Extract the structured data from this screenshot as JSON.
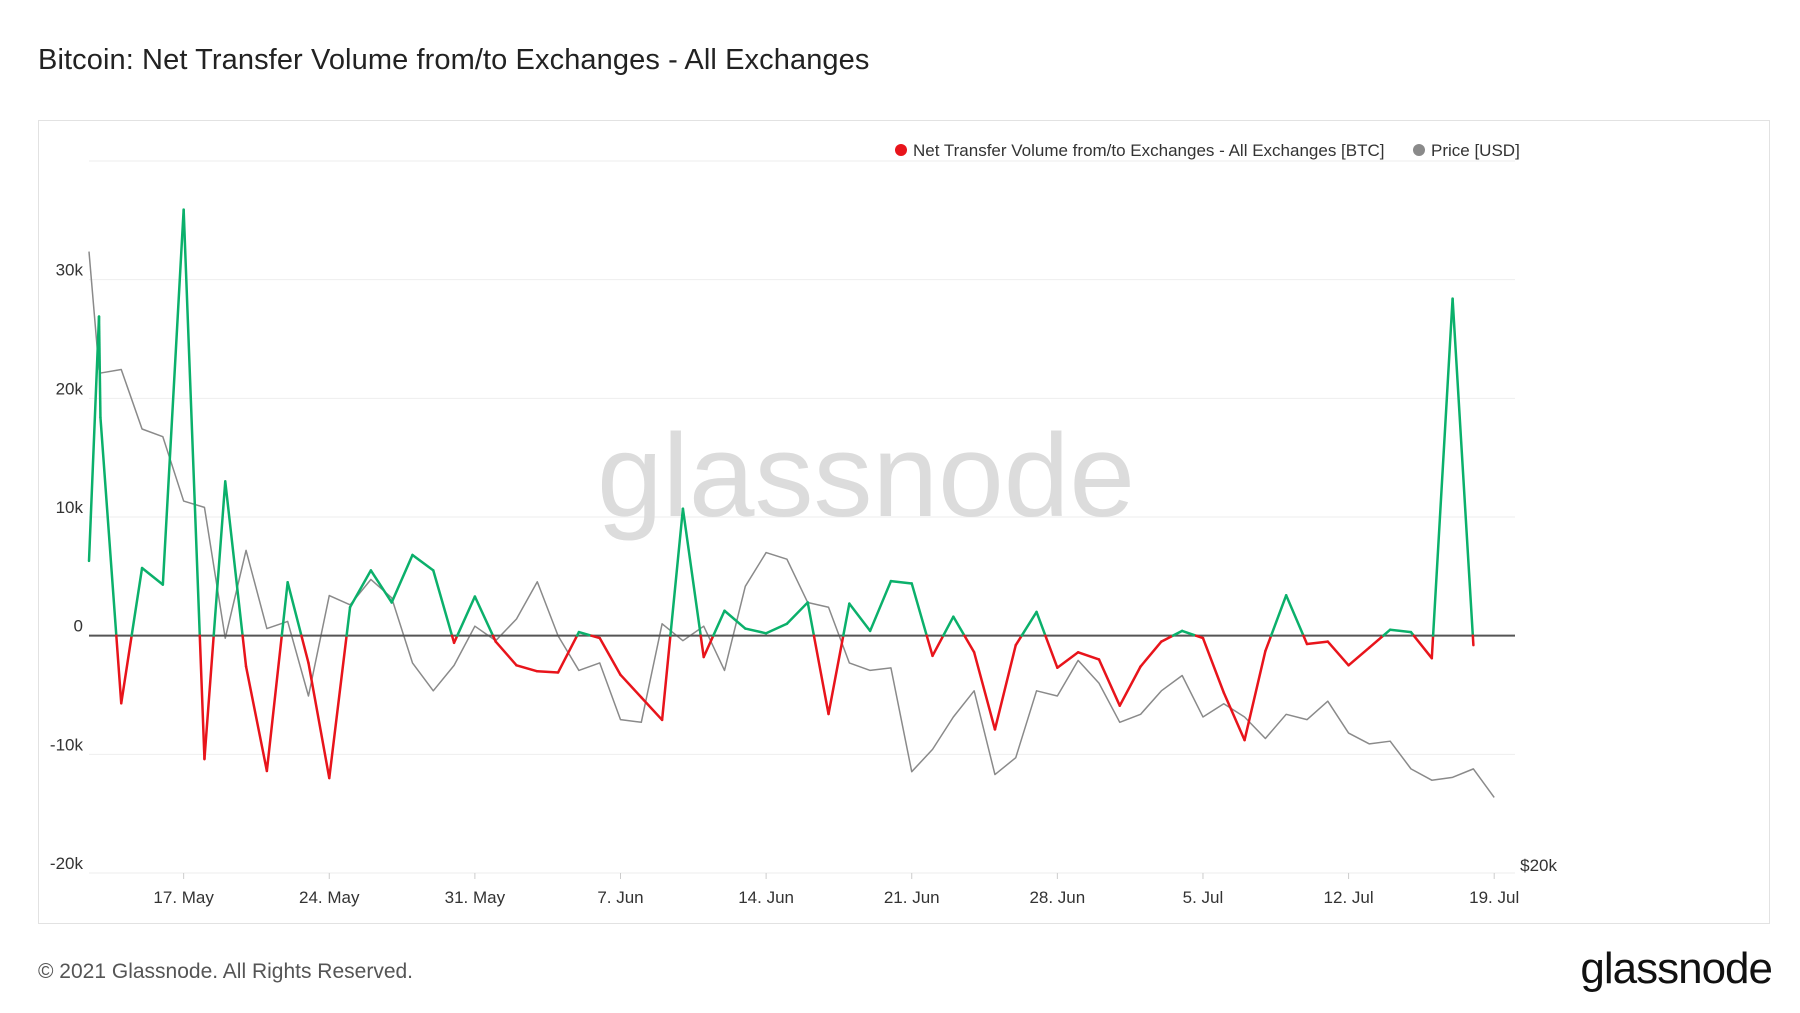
{
  "header": {
    "title": "Bitcoin: Net Transfer Volume from/to Exchanges - All Exchanges"
  },
  "footer": {
    "copyright": "© 2021 Glassnode. All Rights Reserved.",
    "logo_text": "glassnode"
  },
  "watermark": "glassnode",
  "colors": {
    "positive": "#0bb06b",
    "negative": "#e8141b",
    "price": "#8a8a8a",
    "zero_line": "#555555",
    "grid": "#eeeeee",
    "watermark": "#dcdcdc"
  },
  "chart_data": {
    "type": "line",
    "title": "Bitcoin: Net Transfer Volume from/to Exchanges - All Exchanges",
    "legend": {
      "placement": "top-right",
      "items": [
        {
          "label": "Net Transfer Volume from/to Exchanges - All Exchanges [BTC]",
          "color": "#e8141b"
        },
        {
          "label": "Price [USD]",
          "color": "#8a8a8a"
        }
      ]
    },
    "x_range": [
      "2021-05-12",
      "2021-07-20"
    ],
    "x_ticks": [
      {
        "date": "2021-05-17",
        "label": "17. May"
      },
      {
        "date": "2021-05-24",
        "label": "24. May"
      },
      {
        "date": "2021-05-31",
        "label": "31. May"
      },
      {
        "date": "2021-06-07",
        "label": "7. Jun"
      },
      {
        "date": "2021-06-14",
        "label": "14. Jun"
      },
      {
        "date": "2021-06-21",
        "label": "21. Jun"
      },
      {
        "date": "2021-06-28",
        "label": "28. Jun"
      },
      {
        "date": "2021-07-05",
        "label": "5. Jul"
      },
      {
        "date": "2021-07-12",
        "label": "12. Jul"
      },
      {
        "date": "2021-07-19",
        "label": "19. Jul"
      }
    ],
    "y_left": {
      "unit": "BTC",
      "range": [
        -20000,
        40000
      ],
      "ticks": [
        {
          "value": -20000,
          "label": "-20k"
        },
        {
          "value": -10000,
          "label": "-10k"
        },
        {
          "value": 0,
          "label": "0"
        },
        {
          "value": 10000,
          "label": "10k"
        },
        {
          "value": 20000,
          "label": "20k"
        },
        {
          "value": 30000,
          "label": "30k"
        }
      ]
    },
    "y_right": {
      "unit": "USD",
      "scale": "log",
      "range": [
        30000,
        60000
      ],
      "ticks": [
        {
          "value": 20000,
          "label": "$20k"
        }
      ]
    },
    "grid": true,
    "series": [
      {
        "name": "Net Transfer Volume from/to Exchanges - All Exchanges [BTC]",
        "axis": "left",
        "points": [
          [
            "2021-05-12",
            6300
          ],
          [
            "2021-05-12",
            26900
          ],
          [
            "2021-05-13",
            18400
          ],
          [
            "2021-05-14",
            -5700
          ],
          [
            "2021-05-15",
            5700
          ],
          [
            "2021-05-16",
            4300
          ],
          [
            "2021-05-17",
            35900
          ],
          [
            "2021-05-18",
            -10400
          ],
          [
            "2021-05-19",
            13000
          ],
          [
            "2021-05-20",
            -2600
          ],
          [
            "2021-05-21",
            -11400
          ],
          [
            "2021-05-22",
            4500
          ],
          [
            "2021-05-23",
            -2300
          ],
          [
            "2021-05-24",
            -12000
          ],
          [
            "2021-05-25",
            2400
          ],
          [
            "2021-05-26",
            5500
          ],
          [
            "2021-05-27",
            2800
          ],
          [
            "2021-05-28",
            6800
          ],
          [
            "2021-05-29",
            5500
          ],
          [
            "2021-05-30",
            -600
          ],
          [
            "2021-05-31",
            3300
          ],
          [
            "2021-06-01",
            -500
          ],
          [
            "2021-06-02",
            -2500
          ],
          [
            "2021-06-03",
            -3000
          ],
          [
            "2021-06-04",
            -3100
          ],
          [
            "2021-06-05",
            300
          ],
          [
            "2021-06-06",
            -200
          ],
          [
            "2021-06-07",
            -3300
          ],
          [
            "2021-06-08",
            -5200
          ],
          [
            "2021-06-09",
            -7100
          ],
          [
            "2021-06-10",
            10700
          ],
          [
            "2021-06-11",
            -1800
          ],
          [
            "2021-06-12",
            2100
          ],
          [
            "2021-06-13",
            600
          ],
          [
            "2021-06-14",
            200
          ],
          [
            "2021-06-15",
            1000
          ],
          [
            "2021-06-16",
            2800
          ],
          [
            "2021-06-17",
            -6600
          ],
          [
            "2021-06-18",
            2700
          ],
          [
            "2021-06-19",
            400
          ],
          [
            "2021-06-20",
            4600
          ],
          [
            "2021-06-21",
            4400
          ],
          [
            "2021-06-22",
            -1700
          ],
          [
            "2021-06-23",
            1600
          ],
          [
            "2021-06-24",
            -1400
          ],
          [
            "2021-06-25",
            -7900
          ],
          [
            "2021-06-26",
            -800
          ],
          [
            "2021-06-27",
            2000
          ],
          [
            "2021-06-28",
            -2700
          ],
          [
            "2021-06-29",
            -1400
          ],
          [
            "2021-06-30",
            -2000
          ],
          [
            "2021-07-01",
            -5900
          ],
          [
            "2021-07-02",
            -2600
          ],
          [
            "2021-07-03",
            -500
          ],
          [
            "2021-07-04",
            400
          ],
          [
            "2021-07-05",
            -200
          ],
          [
            "2021-07-06",
            -4800
          ],
          [
            "2021-07-07",
            -8800
          ],
          [
            "2021-07-08",
            -1300
          ],
          [
            "2021-07-09",
            3400
          ],
          [
            "2021-07-10",
            -700
          ],
          [
            "2021-07-11",
            -500
          ],
          [
            "2021-07-12",
            -2500
          ],
          [
            "2021-07-13",
            -1000
          ],
          [
            "2021-07-14",
            500
          ],
          [
            "2021-07-15",
            300
          ],
          [
            "2021-07-16",
            -1900
          ],
          [
            "2021-07-17",
            28400
          ],
          [
            "2021-07-18",
            -800
          ]
        ]
      },
      {
        "name": "Price [USD]",
        "axis": "right",
        "points": [
          [
            "2021-05-12",
            56700
          ],
          [
            "2021-05-12",
            49700
          ],
          [
            "2021-05-13",
            49500
          ],
          [
            "2021-05-14",
            49700
          ],
          [
            "2021-05-15",
            46500
          ],
          [
            "2021-05-16",
            46100
          ],
          [
            "2021-05-17",
            42900
          ],
          [
            "2021-05-18",
            42600
          ],
          [
            "2021-05-19",
            36800
          ],
          [
            "2021-05-20",
            40600
          ],
          [
            "2021-05-21",
            37200
          ],
          [
            "2021-05-22",
            37500
          ],
          [
            "2021-05-23",
            34500
          ],
          [
            "2021-05-24",
            38600
          ],
          [
            "2021-05-25",
            38200
          ],
          [
            "2021-05-26",
            39300
          ],
          [
            "2021-05-27",
            38500
          ],
          [
            "2021-05-28",
            35800
          ],
          [
            "2021-05-29",
            34700
          ],
          [
            "2021-05-30",
            35700
          ],
          [
            "2021-05-31",
            37300
          ],
          [
            "2021-06-01",
            36700
          ],
          [
            "2021-06-02",
            37600
          ],
          [
            "2021-06-03",
            39200
          ],
          [
            "2021-06-04",
            36900
          ],
          [
            "2021-06-05",
            35500
          ],
          [
            "2021-06-06",
            35800
          ],
          [
            "2021-06-07",
            33600
          ],
          [
            "2021-06-08",
            33500
          ],
          [
            "2021-06-09",
            37400
          ],
          [
            "2021-06-10",
            36700
          ],
          [
            "2021-06-11",
            37300
          ],
          [
            "2021-06-12",
            35500
          ],
          [
            "2021-06-13",
            39000
          ],
          [
            "2021-06-14",
            40500
          ],
          [
            "2021-06-15",
            40200
          ],
          [
            "2021-06-16",
            38300
          ],
          [
            "2021-06-17",
            38100
          ],
          [
            "2021-06-18",
            35800
          ],
          [
            "2021-06-19",
            35500
          ],
          [
            "2021-06-20",
            35600
          ],
          [
            "2021-06-21",
            31700
          ],
          [
            "2021-06-22",
            32500
          ],
          [
            "2021-06-23",
            33700
          ],
          [
            "2021-06-24",
            34700
          ],
          [
            "2021-06-25",
            31600
          ],
          [
            "2021-06-26",
            32200
          ],
          [
            "2021-06-27",
            34700
          ],
          [
            "2021-06-28",
            34500
          ],
          [
            "2021-06-29",
            35900
          ],
          [
            "2021-06-30",
            35000
          ],
          [
            "2021-07-01",
            33500
          ],
          [
            "2021-07-02",
            33800
          ],
          [
            "2021-07-03",
            34700
          ],
          [
            "2021-07-04",
            35300
          ],
          [
            "2021-07-05",
            33700
          ],
          [
            "2021-07-06",
            34200
          ],
          [
            "2021-07-07",
            33700
          ],
          [
            "2021-07-08",
            32900
          ],
          [
            "2021-07-09",
            33800
          ],
          [
            "2021-07-10",
            33600
          ],
          [
            "2021-07-11",
            34300
          ],
          [
            "2021-07-12",
            33100
          ],
          [
            "2021-07-13",
            32700
          ],
          [
            "2021-07-14",
            32800
          ],
          [
            "2021-07-15",
            31800
          ],
          [
            "2021-07-16",
            31400
          ],
          [
            "2021-07-17",
            31500
          ],
          [
            "2021-07-18",
            31800
          ],
          [
            "2021-07-19",
            30800
          ]
        ]
      }
    ]
  }
}
